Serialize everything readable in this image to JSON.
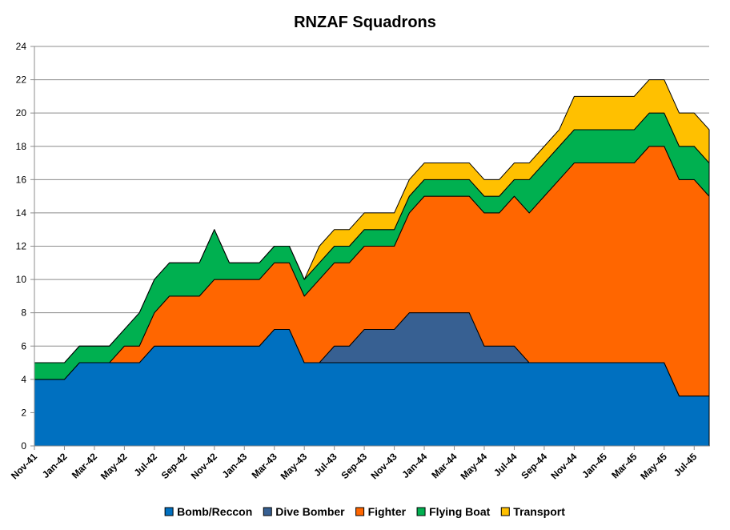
{
  "chart_data": {
    "type": "area",
    "stacked": true,
    "title": "RNZAF Squadrons",
    "xlabel": "",
    "ylabel": "",
    "ylim": [
      0,
      24
    ],
    "yticks": [
      0,
      2,
      4,
      6,
      8,
      10,
      12,
      14,
      16,
      18,
      20,
      22,
      24
    ],
    "grid": true,
    "legend_position": "bottom",
    "x": [
      "Nov-41",
      "Dec-41",
      "Jan-42",
      "Feb-42",
      "Mar-42",
      "Apr-42",
      "May-42",
      "Jun-42",
      "Jul-42",
      "Aug-42",
      "Sep-42",
      "Oct-42",
      "Nov-42",
      "Dec-42",
      "Jan-43",
      "Feb-43",
      "Mar-43",
      "Apr-43",
      "May-43",
      "Jun-43",
      "Jul-43",
      "Aug-43",
      "Sep-43",
      "Oct-43",
      "Nov-43",
      "Dec-43",
      "Jan-44",
      "Feb-44",
      "Mar-44",
      "Apr-44",
      "May-44",
      "Jun-44",
      "Jul-44",
      "Aug-44",
      "Sep-44",
      "Oct-44",
      "Nov-44",
      "Dec-44",
      "Jan-45",
      "Feb-45",
      "Mar-45",
      "Apr-45",
      "May-45",
      "Jun-45",
      "Jul-45",
      "Aug-45"
    ],
    "x_tick_labels": [
      "Nov-41",
      "Jan-42",
      "Mar-42",
      "May-42",
      "Jul-42",
      "Sep-42",
      "Nov-42",
      "Jan-43",
      "Mar-43",
      "May-43",
      "Jul-43",
      "Sep-43",
      "Nov-43",
      "Jan-44",
      "Mar-44",
      "May-44",
      "Jul-44",
      "Sep-44",
      "Nov-44",
      "Jan-45",
      "Mar-45",
      "May-45",
      "Jul-45"
    ],
    "series": [
      {
        "name": "Bomb/Reccon",
        "color": "#0070C0",
        "values": [
          4,
          4,
          4,
          5,
          5,
          5,
          5,
          5,
          6,
          6,
          6,
          6,
          6,
          6,
          6,
          6,
          7,
          7,
          5,
          5,
          5,
          5,
          5,
          5,
          5,
          5,
          5,
          5,
          5,
          5,
          5,
          5,
          5,
          5,
          5,
          5,
          5,
          5,
          5,
          5,
          5,
          5,
          5,
          3,
          3,
          3
        ]
      },
      {
        "name": "Dive Bomber",
        "color": "#376092",
        "values": [
          0,
          0,
          0,
          0,
          0,
          0,
          0,
          0,
          0,
          0,
          0,
          0,
          0,
          0,
          0,
          0,
          0,
          0,
          0,
          0,
          1,
          1,
          2,
          2,
          2,
          3,
          3,
          3,
          3,
          3,
          1,
          1,
          1,
          0,
          0,
          0,
          0,
          0,
          0,
          0,
          0,
          0,
          0,
          0,
          0,
          0
        ]
      },
      {
        "name": "Fighter",
        "color": "#FF6600",
        "values": [
          0,
          0,
          0,
          0,
          0,
          0,
          1,
          1,
          2,
          3,
          3,
          3,
          4,
          4,
          4,
          4,
          4,
          4,
          4,
          5,
          5,
          5,
          5,
          5,
          5,
          6,
          7,
          7,
          7,
          7,
          8,
          8,
          9,
          9,
          10,
          11,
          12,
          12,
          12,
          12,
          12,
          13,
          13,
          13,
          13,
          12
        ]
      },
      {
        "name": "Flying Boat",
        "color": "#00B050",
        "values": [
          1,
          1,
          1,
          1,
          1,
          1,
          1,
          2,
          2,
          2,
          2,
          2,
          3,
          1,
          1,
          1,
          1,
          1,
          1,
          1,
          1,
          1,
          1,
          1,
          1,
          1,
          1,
          1,
          1,
          1,
          1,
          1,
          1,
          2,
          2,
          2,
          2,
          2,
          2,
          2,
          2,
          2,
          2,
          2,
          2,
          2
        ]
      },
      {
        "name": "Transport",
        "color": "#FFC000",
        "values": [
          0,
          0,
          0,
          0,
          0,
          0,
          0,
          0,
          0,
          0,
          0,
          0,
          0,
          0,
          0,
          0,
          0,
          0,
          0,
          1,
          1,
          1,
          1,
          1,
          1,
          1,
          1,
          1,
          1,
          1,
          1,
          1,
          1,
          1,
          1,
          1,
          2,
          2,
          2,
          2,
          2,
          2,
          2,
          2,
          2,
          2
        ]
      }
    ]
  }
}
